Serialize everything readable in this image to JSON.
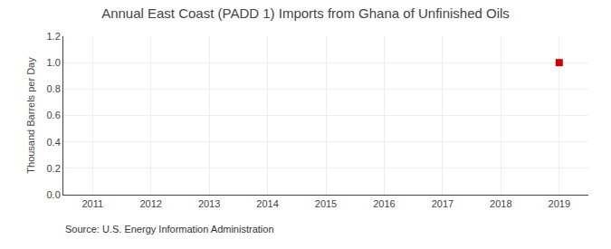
{
  "chart_data": {
    "type": "scatter",
    "title": "Annual East Coast (PADD 1) Imports from Ghana of Unfinished Oils",
    "ylabel": "Thousand Barrels per Day",
    "annotations": [
      "Source: U.S. Energy Information Administration"
    ],
    "x": [
      2019
    ],
    "values": [
      1.0
    ],
    "color": "#CC0000",
    "marker": "square",
    "xlim": [
      2010.5,
      2019.5
    ],
    "xticks": [
      2011,
      2012,
      2013,
      2014,
      2015,
      2016,
      2017,
      2018,
      2019
    ],
    "ylim": [
      0.0,
      1.2
    ],
    "yticks": [
      {
        "value": 0,
        "label": "0.0"
      },
      0.2,
      0.4,
      0.6,
      0.8,
      {
        "value": 1,
        "label": "1.0"
      },
      1.2
    ],
    "grid": true
  }
}
